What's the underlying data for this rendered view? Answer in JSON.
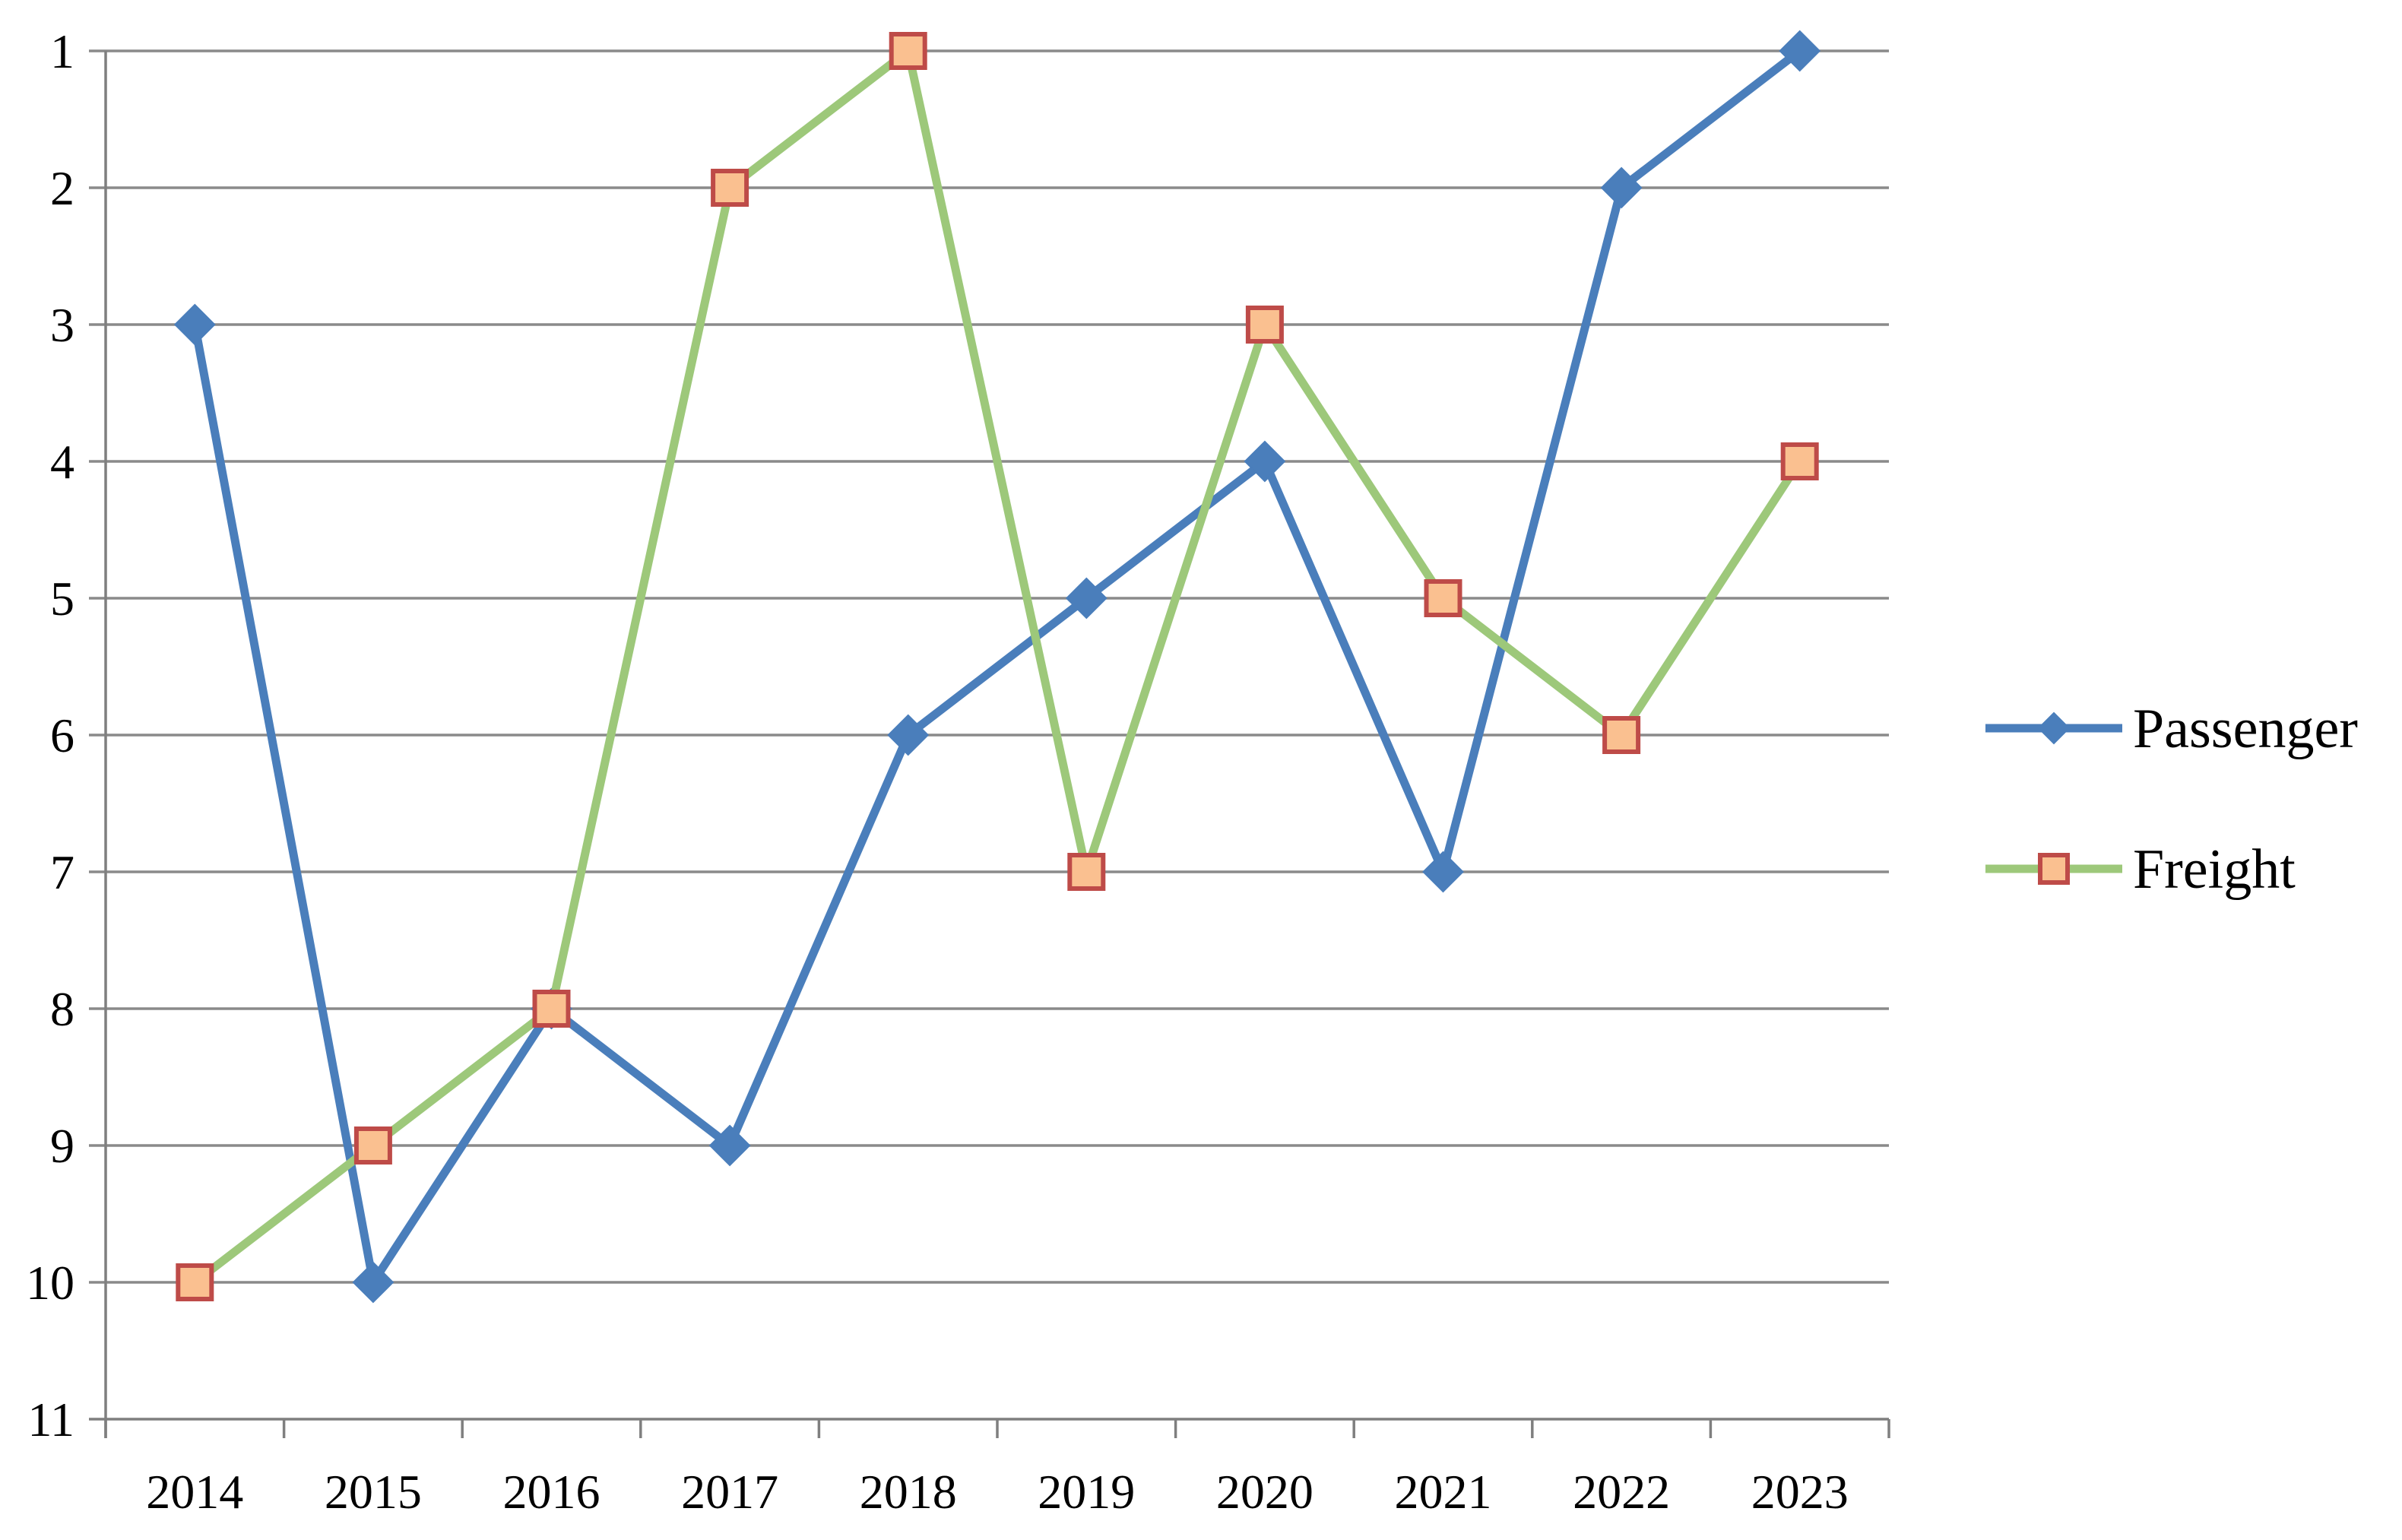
{
  "chart_data": {
    "type": "line",
    "title": "",
    "x": [
      "2014",
      "2015",
      "2016",
      "2017",
      "2018",
      "2019",
      "2020",
      "2021",
      "2022",
      "2023"
    ],
    "series": [
      {
        "name": "Passenger",
        "values": [
          3,
          10,
          8,
          9,
          6,
          5,
          4,
          7,
          2,
          1
        ],
        "color": "#4A7EBB",
        "marker": "diamond",
        "marker_fill": "#4A7EBB",
        "marker_stroke": "#4A7EBB"
      },
      {
        "name": "Freight",
        "values": [
          10,
          9,
          8,
          2,
          1,
          7,
          3,
          5,
          6,
          4
        ],
        "color": "#9DC87A",
        "marker": "square",
        "marker_fill": "#FAC090",
        "marker_stroke": "#BE4B48"
      }
    ],
    "y_axis": {
      "min": 1,
      "max": 11,
      "step": 1,
      "inverted": true,
      "tick_labels": [
        "1",
        "2",
        "3",
        "4",
        "5",
        "6",
        "7",
        "8",
        "9",
        "10",
        "11"
      ]
    },
    "x_axis": {
      "tick_labels": [
        "2014",
        "2015",
        "2016",
        "2017",
        "2018",
        "2019",
        "2020",
        "2021",
        "2022",
        "2023"
      ]
    },
    "grid": "horizontal",
    "legend_position": "right",
    "colors": {
      "gridline": "#8A8A8A",
      "axis": "#7F7F7F",
      "text": "#000000",
      "background": "#FFFFFF"
    }
  }
}
